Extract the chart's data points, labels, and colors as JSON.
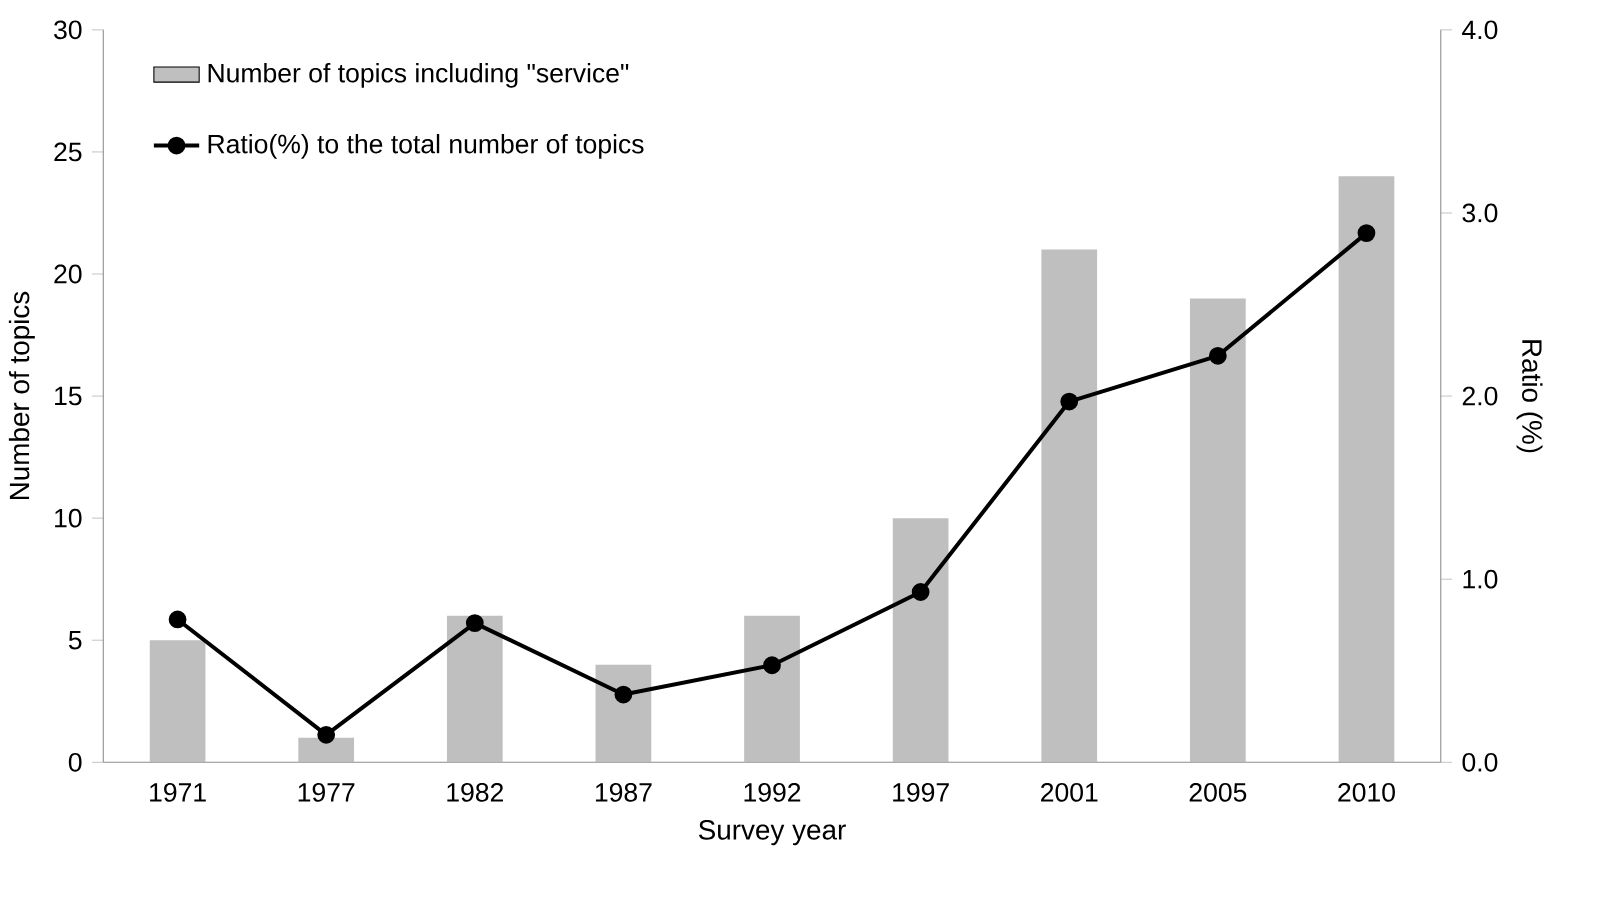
{
  "chart_data": {
    "type": "bar",
    "xlabel": "Survey year",
    "ylabel": "Number of topics",
    "y2label": "Ratio (%)",
    "categories": [
      "1971",
      "1977",
      "1982",
      "1987",
      "1992",
      "1997",
      "2001",
      "2005",
      "2010"
    ],
    "series": [
      {
        "name": "Number of topics including \"service\"",
        "color": "#bfbfbf",
        "values": [
          5,
          1,
          6,
          4,
          6,
          10,
          21,
          19,
          24
        ]
      },
      {
        "name": "Ratio(%) to the total number of topics",
        "type": "line",
        "axis": "y2",
        "color": "#000000",
        "marker": "circle",
        "values": [
          0.78,
          0.15,
          0.76,
          0.37,
          0.53,
          0.93,
          1.97,
          2.22,
          2.89
        ]
      }
    ],
    "ylim": [
      0,
      30
    ],
    "yticks": [
      0,
      5,
      10,
      15,
      20,
      25,
      30
    ],
    "y2lim": [
      0,
      4
    ],
    "y2ticks": [
      {
        "value": 0,
        "label": "0.0"
      },
      {
        "value": 1,
        "label": "1.0"
      },
      {
        "value": 2,
        "label": "2.0"
      },
      {
        "value": 3,
        "label": "3.0"
      },
      {
        "value": 4,
        "label": "4.0"
      }
    ],
    "legend": "top left"
  }
}
